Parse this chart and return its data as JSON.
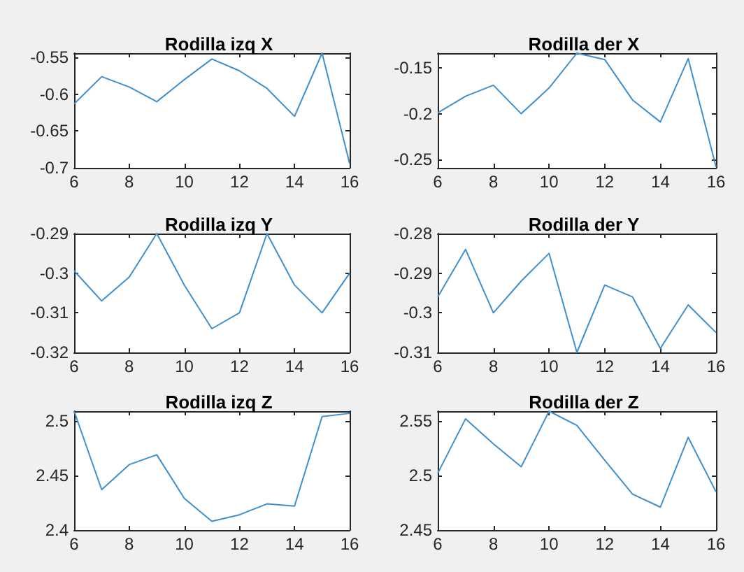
{
  "chart_data": [
    {
      "type": "line",
      "title": "Rodilla izq X",
      "x": [
        6,
        7,
        8,
        9,
        10,
        11,
        12,
        13,
        14,
        15,
        16
      ],
      "color": "#3d8fd1",
      "marker": "none",
      "values": [
        -0.613,
        -0.576,
        -0.59,
        -0.61,
        -0.58,
        -0.552,
        -0.568,
        -0.592,
        -0.63,
        -0.544,
        -0.694
      ],
      "xlim": [
        6,
        16
      ],
      "ylim": [
        -0.7,
        -0.544
      ],
      "xticks": [
        6,
        8,
        10,
        12,
        14,
        16
      ],
      "yticks": [
        -0.7,
        -0.65,
        -0.6,
        -0.55
      ]
    },
    {
      "type": "line",
      "title": "Rodilla der X",
      "x": [
        6,
        7,
        8,
        9,
        10,
        11,
        12,
        13,
        14,
        15,
        16
      ],
      "color": "#3d8fd1",
      "marker": "none",
      "values": [
        -0.199,
        -0.181,
        -0.169,
        -0.2,
        -0.172,
        -0.134,
        -0.141,
        -0.185,
        -0.209,
        -0.14,
        -0.258
      ],
      "xlim": [
        6,
        16
      ],
      "ylim": [
        -0.259,
        -0.134
      ],
      "xticks": [
        6,
        8,
        10,
        12,
        14,
        16
      ],
      "yticks": [
        -0.25,
        -0.2,
        -0.15
      ]
    },
    {
      "type": "line",
      "title": "Rodilla izq Y",
      "x": [
        6,
        7,
        8,
        9,
        10,
        11,
        12,
        13,
        14,
        15,
        16
      ],
      "color": "#3d8fd1",
      "marker": "none",
      "values": [
        -0.2994,
        -0.307,
        -0.301,
        -0.29,
        -0.303,
        -0.314,
        -0.31,
        -0.29,
        -0.303,
        -0.31,
        -0.3
      ],
      "xlim": [
        6,
        16
      ],
      "ylim": [
        -0.32,
        -0.29
      ],
      "xticks": [
        6,
        8,
        10,
        12,
        14,
        16
      ],
      "yticks": [
        -0.32,
        -0.31,
        -0.3,
        -0.29
      ]
    },
    {
      "type": "line",
      "title": "Rodilla der Y",
      "x": [
        6,
        7,
        8,
        9,
        10,
        11,
        12,
        13,
        14,
        15,
        16
      ],
      "color": "#3d8fd1",
      "marker": "none",
      "values": [
        -0.296,
        -0.284,
        -0.3,
        -0.292,
        -0.285,
        -0.31,
        -0.293,
        -0.296,
        -0.309,
        -0.298,
        -0.305
      ],
      "xlim": [
        6,
        16
      ],
      "ylim": [
        -0.31,
        -0.28
      ],
      "xticks": [
        6,
        8,
        10,
        12,
        14,
        16
      ],
      "yticks": [
        -0.31,
        -0.3,
        -0.29,
        -0.28
      ]
    },
    {
      "type": "line",
      "title": "Rodilla izq Z",
      "x": [
        6,
        7,
        8,
        9,
        10,
        11,
        12,
        13,
        14,
        15,
        16
      ],
      "color": "#3d8fd1",
      "marker": "none",
      "values": [
        2.509,
        2.437,
        2.46,
        2.469,
        2.429,
        2.408,
        2.414,
        2.424,
        2.422,
        2.504,
        2.507
      ],
      "xlim": [
        6,
        16
      ],
      "ylim": [
        2.4,
        2.509
      ],
      "xticks": [
        6,
        8,
        10,
        12,
        14,
        16
      ],
      "yticks": [
        2.4,
        2.45,
        2.5
      ]
    },
    {
      "type": "line",
      "title": "Rodilla der Z",
      "x": [
        6,
        7,
        8,
        9,
        10,
        11,
        12,
        13,
        14,
        15,
        16
      ],
      "color": "#3d8fd1",
      "marker": "none",
      "values": [
        2.502,
        2.552,
        2.529,
        2.508,
        2.559,
        2.546,
        2.514,
        2.483,
        2.471,
        2.535,
        2.485
      ],
      "xlim": [
        6,
        16
      ],
      "ylim": [
        2.45,
        2.559
      ],
      "xticks": [
        6,
        8,
        10,
        12,
        14,
        16
      ],
      "yticks": [
        2.45,
        2.5,
        2.55
      ]
    }
  ]
}
